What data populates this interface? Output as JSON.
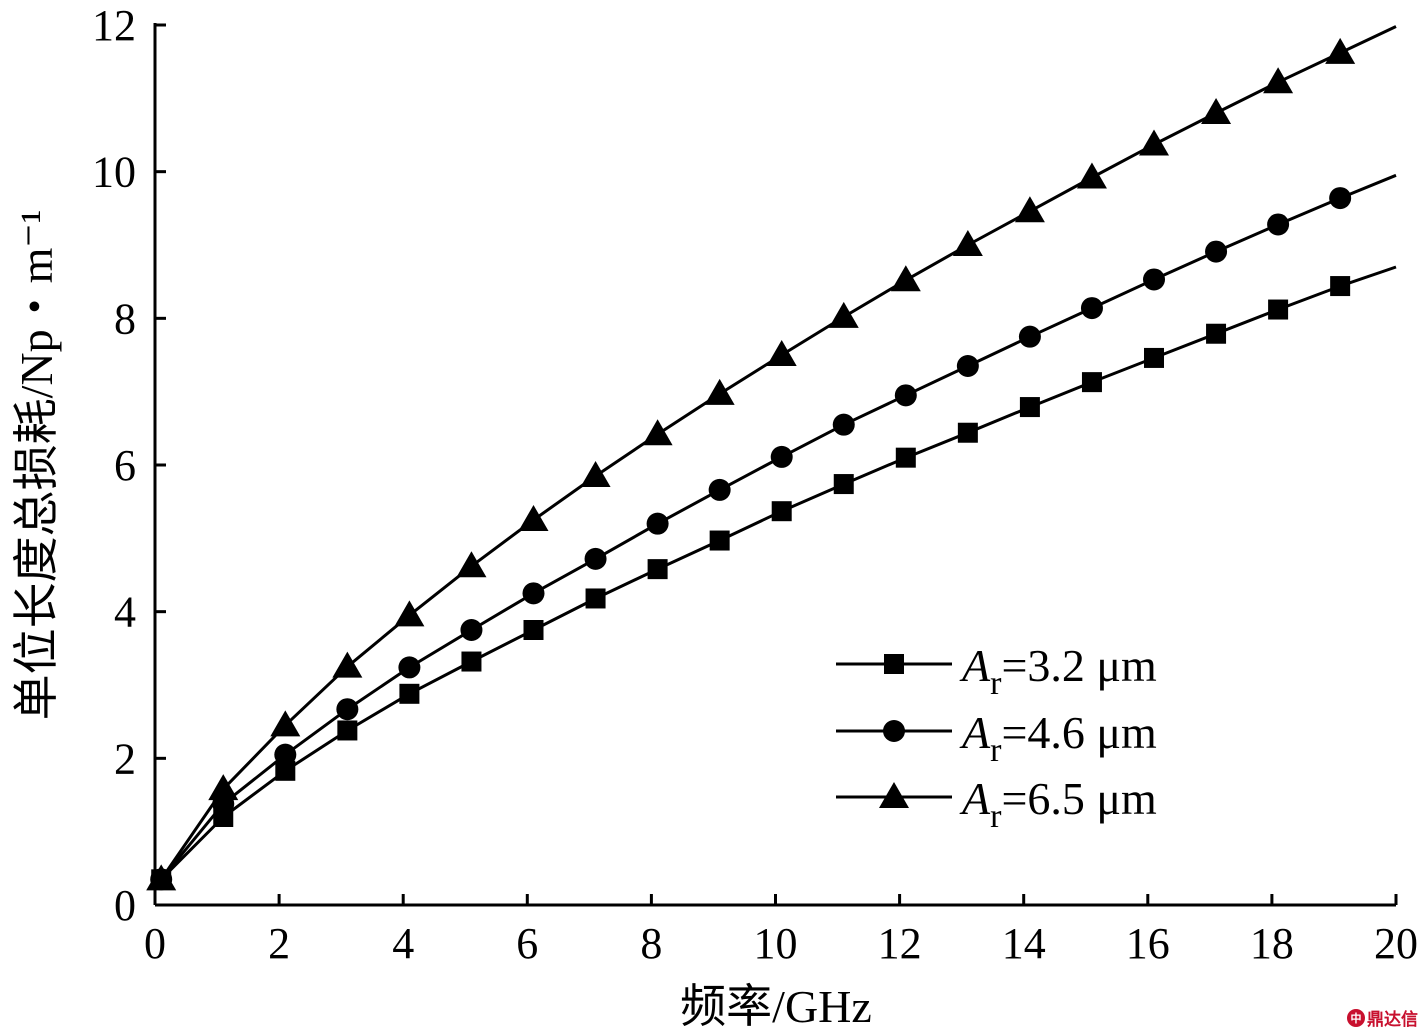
{
  "chart_data": {
    "type": "line",
    "xlabel": "频率/GHz",
    "ylabel": "单位长度总损耗/Np・m⁻¹",
    "xlim": [
      0,
      20
    ],
    "ylim": [
      0,
      12
    ],
    "x_ticks": [
      "0",
      "2",
      "4",
      "6",
      "8",
      "10",
      "12",
      "14",
      "16",
      "18",
      "20"
    ],
    "y_ticks": [
      "0",
      "2",
      "4",
      "6",
      "8",
      "10",
      "12"
    ],
    "grid": false,
    "legend_position": "lower-right",
    "series": [
      {
        "name": "Ar=3.2 μm",
        "label_sym": "A",
        "label_sub": "r",
        "label_rest": "=3.2 μm",
        "marker": "square",
        "x": [
          0.1,
          1.1,
          2.1,
          3.1,
          4.1,
          5.1,
          6.1,
          7.1,
          8.1,
          9.1,
          10.1,
          11.1,
          12.1,
          13.1,
          14.1,
          15.1,
          16.1,
          17.1,
          18.1,
          19.1
        ],
        "values": [
          0.35,
          1.2,
          1.83,
          2.38,
          2.88,
          3.32,
          3.75,
          4.18,
          4.58,
          4.97,
          5.37,
          5.74,
          6.1,
          6.44,
          6.79,
          7.13,
          7.46,
          7.79,
          8.12,
          8.44
        ],
        "end": [
          20,
          8.7
        ]
      },
      {
        "name": "Ar=4.6 μm",
        "label_sym": "A",
        "label_sub": "r",
        "label_rest": "=4.6 μm",
        "marker": "circle",
        "x": [
          0.1,
          1.1,
          2.1,
          3.1,
          4.1,
          5.1,
          6.1,
          7.1,
          8.1,
          9.1,
          10.1,
          11.1,
          12.1,
          13.1,
          14.1,
          15.1,
          16.1,
          17.1,
          18.1,
          19.1
        ],
        "values": [
          0.35,
          1.38,
          2.05,
          2.67,
          3.24,
          3.75,
          4.25,
          4.72,
          5.2,
          5.66,
          6.11,
          6.55,
          6.95,
          7.35,
          7.75,
          8.14,
          8.53,
          8.91,
          9.28,
          9.64
        ],
        "end": [
          20,
          9.95
        ]
      },
      {
        "name": "Ar=6.5 μm",
        "label_sym": "A",
        "label_sub": "r",
        "label_rest": "=6.5 μm",
        "marker": "triangle",
        "x": [
          0.1,
          1.1,
          2.1,
          3.1,
          4.1,
          5.1,
          6.1,
          7.1,
          8.1,
          9.1,
          10.1,
          11.1,
          12.1,
          13.1,
          14.1,
          15.1,
          16.1,
          17.1,
          18.1,
          19.1
        ],
        "values": [
          0.35,
          1.58,
          2.45,
          3.25,
          3.95,
          4.62,
          5.25,
          5.85,
          6.42,
          6.97,
          7.5,
          8.02,
          8.52,
          9.0,
          9.46,
          9.92,
          10.37,
          10.8,
          11.22,
          11.62
        ],
        "end": [
          20,
          11.98
        ]
      }
    ]
  },
  "watermark": {
    "icon_text": "中",
    "text": "鼎达信"
  }
}
